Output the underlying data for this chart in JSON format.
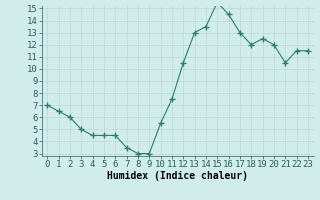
{
  "x": [
    0,
    1,
    2,
    3,
    4,
    5,
    6,
    7,
    8,
    9,
    10,
    11,
    12,
    13,
    14,
    15,
    16,
    17,
    18,
    19,
    20,
    21,
    22,
    23
  ],
  "y": [
    7.0,
    6.5,
    6.0,
    5.0,
    4.5,
    4.5,
    4.5,
    3.5,
    3.0,
    3.0,
    5.5,
    7.5,
    10.5,
    13.0,
    13.5,
    15.5,
    14.5,
    13.0,
    12.0,
    12.5,
    12.0,
    10.5,
    11.5,
    11.5
  ],
  "line_color": "#2e7d6e",
  "marker": "+",
  "marker_size": 4.0,
  "bg_color": "#d0eceb",
  "grid_color_major": "#c0d8d8",
  "grid_color_minor": "#daeaea",
  "xlabel": "Humidex (Indice chaleur)",
  "xlabel_fontsize": 7,
  "tick_fontsize": 6.5,
  "ylim_min": 3,
  "ylim_max": 15,
  "xlim_min": 0,
  "xlim_max": 23,
  "yticks": [
    3,
    4,
    5,
    6,
    7,
    8,
    9,
    10,
    11,
    12,
    13,
    14,
    15
  ],
  "xticks": [
    0,
    1,
    2,
    3,
    4,
    5,
    6,
    7,
    8,
    9,
    10,
    11,
    12,
    13,
    14,
    15,
    16,
    17,
    18,
    19,
    20,
    21,
    22,
    23
  ]
}
